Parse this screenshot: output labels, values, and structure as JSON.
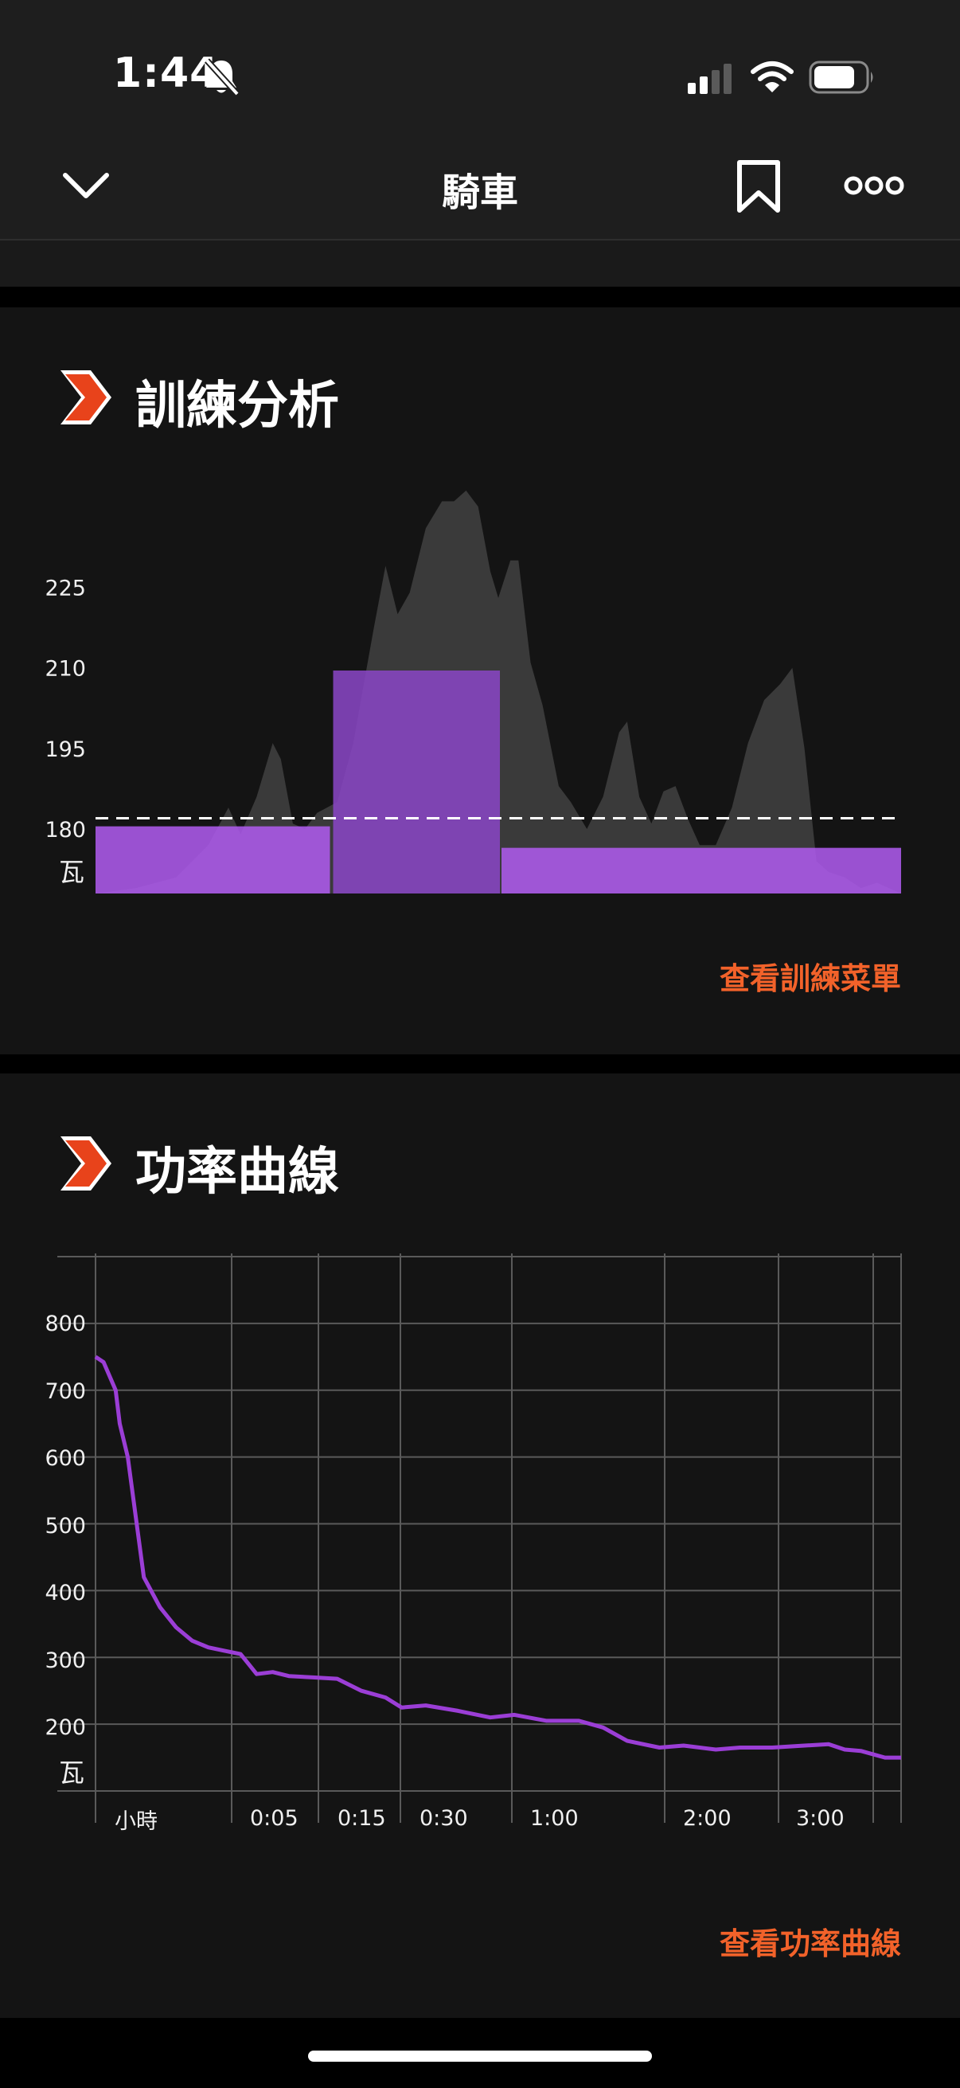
{
  "status_bar": {
    "time": "1:44",
    "signal_icon": "cellular-signal-icon",
    "wifi_icon": "wifi-icon",
    "battery_icon": "battery-icon",
    "mute_icon": "bell-slash-icon"
  },
  "header": {
    "title": "騎車",
    "back_icon": "chevron-down-icon",
    "bookmark_icon": "bookmark-icon",
    "more_icon": "more-icon"
  },
  "colors": {
    "accent": "#f2622a",
    "card_bg": "#141414",
    "purple": "#b25cf2",
    "purple_dark": "#8b46c8",
    "line": "#9b3ed6",
    "gray_area": "#3a3a3a"
  },
  "training_analysis": {
    "title": "訓練分析",
    "link": "查看訓練菜單",
    "chart_data": {
      "type": "area",
      "unit_label": "瓦",
      "y_ticks": [
        "225",
        "210",
        "195",
        "180"
      ],
      "ylim": [
        168,
        243
      ],
      "threshold": 182,
      "intervals": [
        {
          "start": 0.0,
          "end": 0.293,
          "value": 180.5
        },
        {
          "start": 0.293,
          "end": 0.502,
          "value": 209.5
        },
        {
          "start": 0.502,
          "end": 1.0,
          "value": 176.5
        }
      ],
      "power_trace": [
        [
          0,
          168
        ],
        [
          0.05,
          169
        ],
        [
          0.1,
          171
        ],
        [
          0.14,
          177
        ],
        [
          0.165,
          184
        ],
        [
          0.18,
          179
        ],
        [
          0.2,
          186
        ],
        [
          0.22,
          196
        ],
        [
          0.23,
          193
        ],
        [
          0.245,
          181
        ],
        [
          0.26,
          180
        ],
        [
          0.275,
          183
        ],
        [
          0.3,
          185
        ],
        [
          0.32,
          196
        ],
        [
          0.345,
          217
        ],
        [
          0.36,
          229
        ],
        [
          0.375,
          220
        ],
        [
          0.39,
          224
        ],
        [
          0.41,
          236
        ],
        [
          0.43,
          241
        ],
        [
          0.445,
          241
        ],
        [
          0.46,
          243
        ],
        [
          0.475,
          240
        ],
        [
          0.49,
          228
        ],
        [
          0.5,
          223
        ],
        [
          0.515,
          230
        ],
        [
          0.525,
          230
        ],
        [
          0.54,
          211
        ],
        [
          0.555,
          203
        ],
        [
          0.575,
          188
        ],
        [
          0.59,
          185
        ],
        [
          0.61,
          180
        ],
        [
          0.63,
          186
        ],
        [
          0.65,
          198
        ],
        [
          0.66,
          200
        ],
        [
          0.675,
          186
        ],
        [
          0.69,
          181
        ],
        [
          0.705,
          187
        ],
        [
          0.72,
          188
        ],
        [
          0.735,
          182
        ],
        [
          0.75,
          177
        ],
        [
          0.77,
          177
        ],
        [
          0.79,
          184
        ],
        [
          0.81,
          196
        ],
        [
          0.83,
          204
        ],
        [
          0.85,
          207
        ],
        [
          0.865,
          210
        ],
        [
          0.88,
          195
        ],
        [
          0.895,
          174
        ],
        [
          0.91,
          172
        ],
        [
          0.93,
          171
        ],
        [
          0.95,
          169
        ],
        [
          0.97,
          170
        ],
        [
          1.0,
          168
        ]
      ]
    }
  },
  "power_curve": {
    "title": "功率曲線",
    "link": "查看功率曲線",
    "chart_data": {
      "type": "line",
      "unit_label": "瓦",
      "y_ticks": [
        "800",
        "700",
        "600",
        "500",
        "400",
        "300",
        "200"
      ],
      "ylim": [
        100,
        900
      ],
      "x_ticks": [
        "小時",
        "0:05",
        "0:15",
        "0:30",
        "1:00",
        "2:00",
        "3:00"
      ],
      "series": [
        {
          "points": [
            [
              0,
              750
            ],
            [
              0.01,
              742
            ],
            [
              0.025,
              700
            ],
            [
              0.03,
              650
            ],
            [
              0.04,
              600
            ],
            [
              0.05,
              510
            ],
            [
              0.06,
              420
            ],
            [
              0.08,
              375
            ],
            [
              0.1,
              345
            ],
            [
              0.12,
              325
            ],
            [
              0.14,
              315
            ],
            [
              0.16,
              310
            ],
            [
              0.18,
              305
            ],
            [
              0.19,
              290
            ],
            [
              0.2,
              275
            ],
            [
              0.22,
              278
            ],
            [
              0.24,
              272
            ],
            [
              0.27,
              270
            ],
            [
              0.3,
              268
            ],
            [
              0.33,
              250
            ],
            [
              0.36,
              240
            ],
            [
              0.38,
              225
            ],
            [
              0.41,
              228
            ],
            [
              0.45,
              220
            ],
            [
              0.49,
              210
            ],
            [
              0.52,
              214
            ],
            [
              0.56,
              205
            ],
            [
              0.6,
              205
            ],
            [
              0.63,
              195
            ],
            [
              0.66,
              175
            ],
            [
              0.7,
              165
            ],
            [
              0.73,
              168
            ],
            [
              0.77,
              162
            ],
            [
              0.8,
              165
            ],
            [
              0.84,
              165
            ],
            [
              0.88,
              168
            ],
            [
              0.91,
              170
            ],
            [
              0.93,
              162
            ],
            [
              0.95,
              160
            ],
            [
              0.98,
              150
            ],
            [
              1.0,
              150
            ]
          ]
        }
      ]
    }
  }
}
